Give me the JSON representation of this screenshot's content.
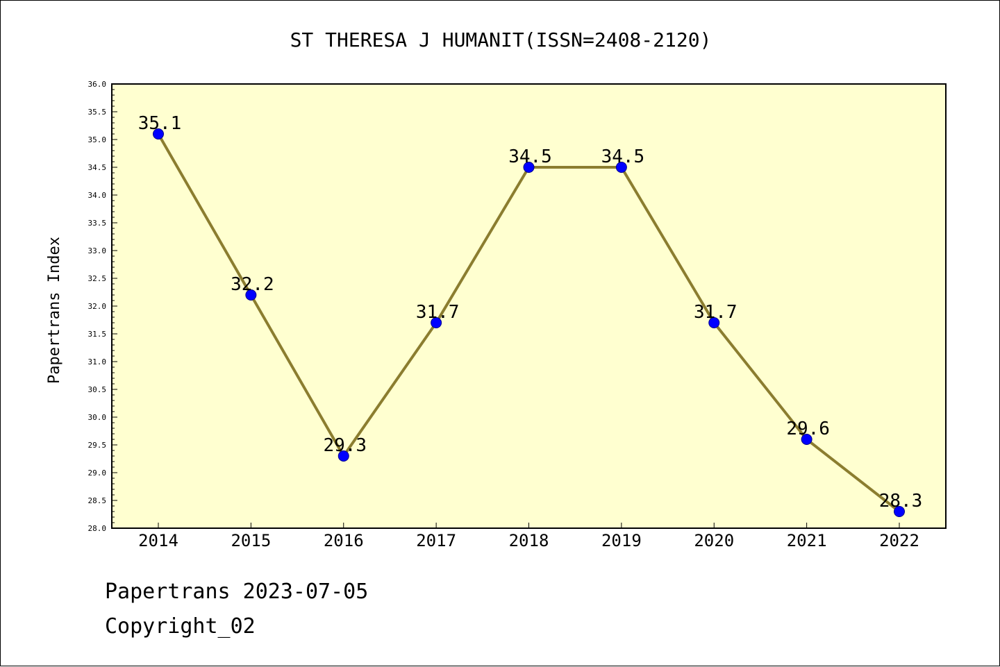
{
  "chart_data": {
    "type": "line",
    "title": "ST THERESA J HUMANIT(ISSN=2408-2120)",
    "ylabel": "Papertrans Index",
    "xlabel": "",
    "categories": [
      "2014",
      "2015",
      "2016",
      "2017",
      "2018",
      "2019",
      "2020",
      "2021",
      "2022"
    ],
    "series": [
      {
        "values": [
          35.1,
          32.2,
          29.3,
          31.7,
          34.5,
          34.5,
          31.7,
          29.6,
          28.3
        ],
        "data_labels": [
          "35.1",
          "32.2",
          "29.3",
          "31.7",
          "34.5",
          "34.5",
          "31.7",
          "29.6",
          "28.3"
        ]
      }
    ],
    "ylim": [
      28.0,
      36.0
    ],
    "yticks": [
      "28.0",
      "28.5",
      "29.0",
      "29.5",
      "30.0",
      "30.5",
      "31.0",
      "31.5",
      "32.0",
      "32.5",
      "33.0",
      "33.5",
      "34.0",
      "34.5",
      "35.0",
      "35.5",
      "36.0"
    ],
    "grid": false,
    "colors": {
      "plot_background": "#ffffd0",
      "line": "#8b7d2f",
      "marker": "#0000ff"
    }
  },
  "footer": {
    "date_line": "Papertrans 2023-07-05",
    "copyright": "Copyright_02"
  }
}
